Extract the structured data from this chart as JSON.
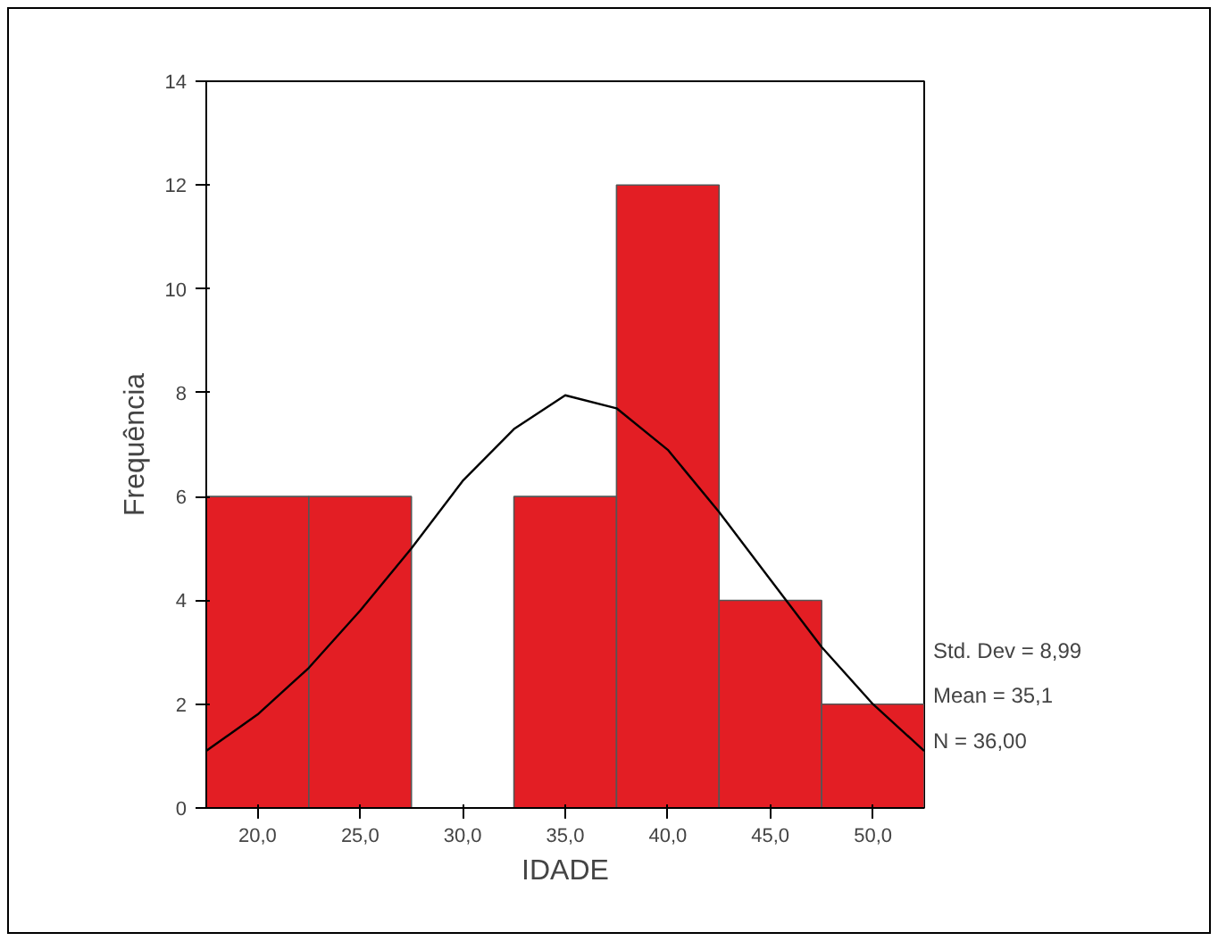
{
  "chart_data": {
    "type": "histogram",
    "xlabel": "IDADE",
    "ylabel": "Frequência",
    "bins": [
      17.5,
      22.5,
      27.5,
      32.5,
      37.5,
      42.5,
      47.5,
      52.5
    ],
    "series": [
      {
        "color": "#e31e24",
        "values": [
          6,
          6,
          0,
          6,
          12,
          4,
          2
        ]
      },
      {
        "type": "line",
        "color": "#000000",
        "x": [
          17.5,
          20,
          22.5,
          25,
          27.5,
          30,
          32.5,
          35,
          37.5,
          40,
          42.5,
          45,
          47.5,
          50,
          52.5
        ],
        "values": [
          1.1,
          1.8,
          2.7,
          3.8,
          5.0,
          6.3,
          7.3,
          7.95,
          7.7,
          6.9,
          5.7,
          4.4,
          3.1,
          2.0,
          1.1
        ]
      }
    ],
    "xlim": [
      17.5,
      52.5
    ],
    "xticks": [
      {
        "value": 20,
        "label": "20,0"
      },
      {
        "value": 25,
        "label": "25,0"
      },
      {
        "value": 30,
        "label": "30,0"
      },
      {
        "value": 35,
        "label": "35,0"
      },
      {
        "value": 40,
        "label": "40,0"
      },
      {
        "value": 45,
        "label": "45,0"
      },
      {
        "value": 50,
        "label": "50,0"
      }
    ],
    "ylim": [
      0,
      14
    ],
    "yticks": [
      0,
      2,
      4,
      6,
      8,
      10,
      12,
      14
    ],
    "grid": false,
    "annotations": [
      "Std. Dev = 8,99",
      "Mean = 35,1",
      "N = 36,00"
    ]
  }
}
